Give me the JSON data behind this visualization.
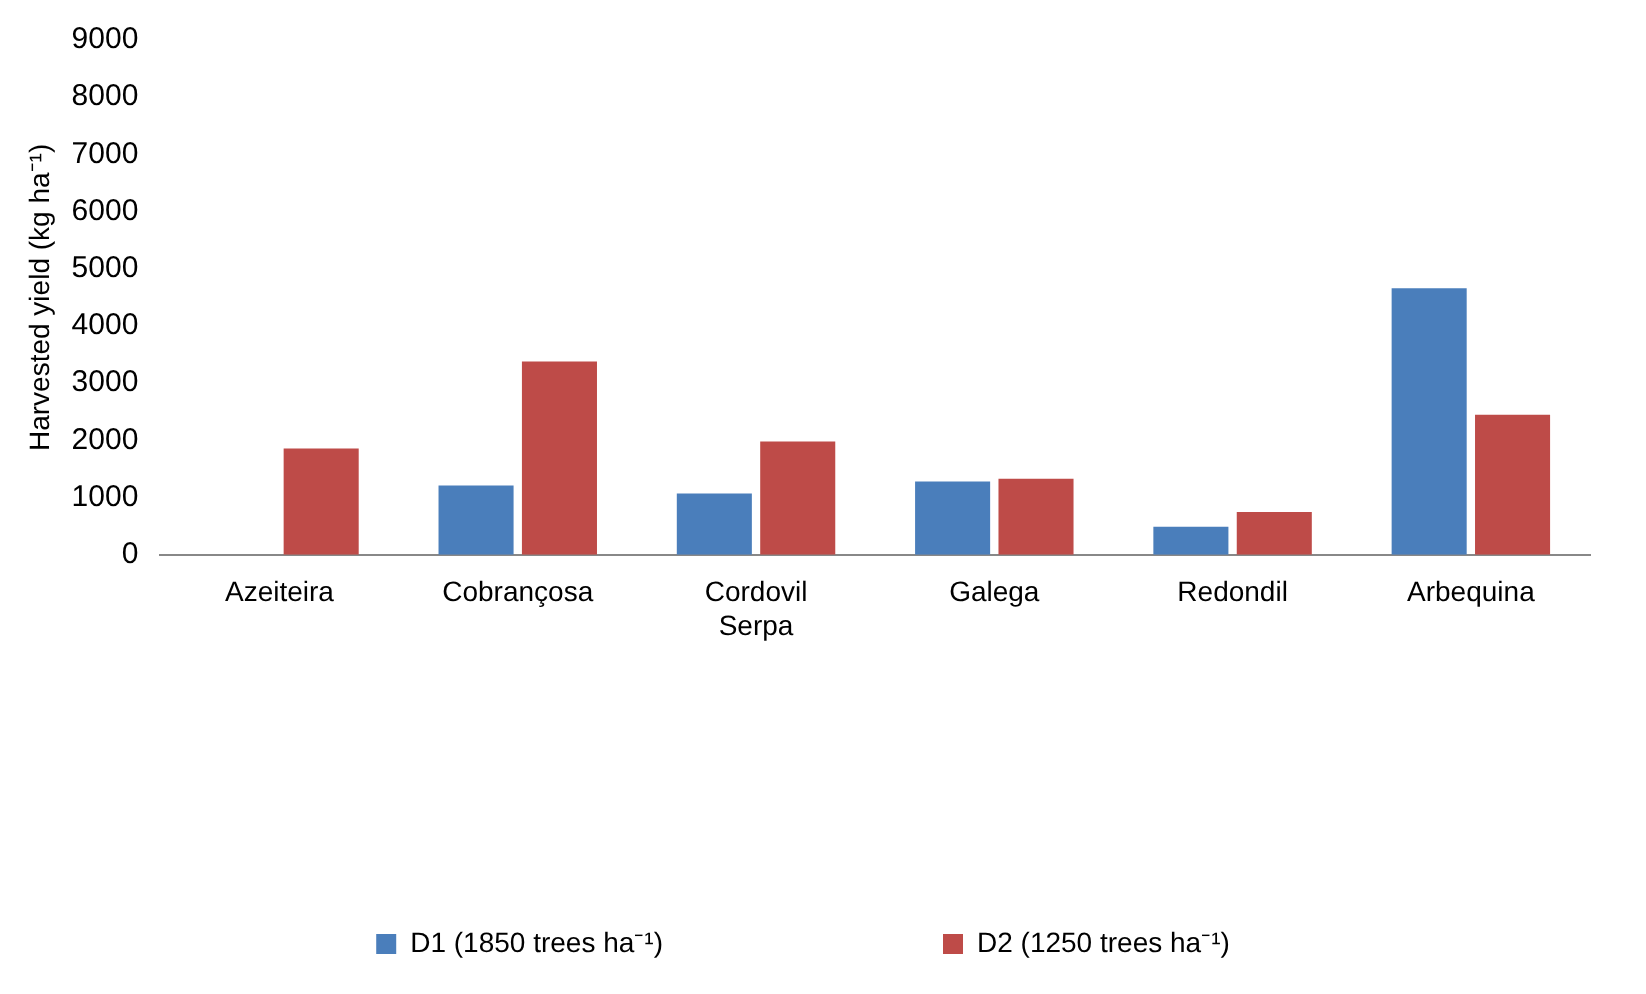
{
  "chart_data": {
    "type": "bar",
    "ylabel": "Harvested yield (kg ha⁻¹)",
    "categories": [
      "Azeiteira",
      "Cobrançosa",
      "Cordovil Serpa",
      "Galega",
      "Redondil",
      "Arbequina"
    ],
    "series": [
      {
        "name": "D1 (1850 trees ha⁻¹)",
        "color": "#4a7ebb",
        "values": [
          null,
          1210,
          1070,
          1280,
          490,
          4660
        ]
      },
      {
        "name": "D2 (1250 trees ha⁻¹)",
        "color": "#be4b48",
        "values": [
          1860,
          3380,
          1980,
          1330,
          750,
          2450
        ]
      }
    ],
    "ylim": [
      0,
      9000
    ],
    "yticks": [
      0,
      1000,
      2000,
      3000,
      4000,
      5000,
      6000,
      7000,
      8000,
      9000
    ],
    "grid": false,
    "legend": "bottom"
  }
}
